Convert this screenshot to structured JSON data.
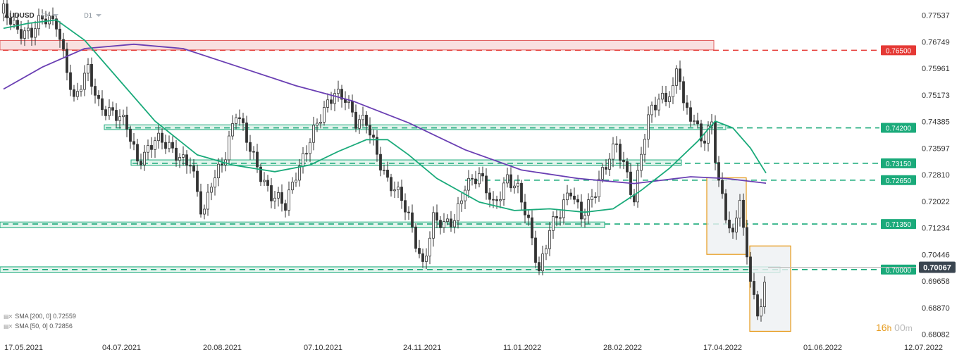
{
  "header": {
    "symbol": "AUDUSD",
    "market": "FX",
    "interval": "D1"
  },
  "indicators": [
    {
      "label": "SMA [200, 0] 0.72559",
      "color": "#6a3fb3"
    },
    {
      "label": "SMA [50, 0] 0.72856",
      "color": "#1aaa7a"
    }
  ],
  "countdown": {
    "hours": "16",
    "h": "h",
    "minutes": "00",
    "m": "m"
  },
  "colors": {
    "green_level": "#1aaa7a",
    "red_level": "#e53935",
    "sma200": "#6a3fb3",
    "sma50": "#1aaa7a",
    "candle_up": "#ffffff",
    "candle_down": "#333333",
    "current_price": "#3a4550",
    "box_outline": "#e69a1b"
  },
  "chart_data": {
    "type": "candlestick",
    "title": "AUDUSD",
    "x_tick_labels": [
      "17.05.2021",
      "04.07.2021",
      "20.08.2021",
      "07.10.2021",
      "24.11.2021",
      "11.01.2022",
      "28.02.2022",
      "17.04.2022",
      "01.06.2022",
      "12.07.2022"
    ],
    "y_tick_labels": [
      "0.77537",
      "0.76749",
      "0.75961",
      "0.75173",
      "0.74385",
      "0.73597",
      "0.72810",
      "0.72022",
      "0.71234",
      "0.70446",
      "0.69658",
      "0.68870",
      "0.68082"
    ],
    "ylim": [
      0.6797,
      0.7799
    ],
    "levels": [
      {
        "label": "0.76500",
        "value": 0.765,
        "color": "red"
      },
      {
        "label": "0.74200",
        "value": 0.742,
        "color": "green"
      },
      {
        "label": "0.73150",
        "value": 0.7315,
        "color": "green"
      },
      {
        "label": "0.72650",
        "value": 0.7265,
        "color": "green"
      },
      {
        "label": "0.71350",
        "value": 0.7135,
        "color": "green"
      },
      {
        "label": "0.70000",
        "value": 0.7,
        "color": "green"
      }
    ],
    "current_price": {
      "label": "0.70067",
      "value": 0.70067
    },
    "series": [
      {
        "name": "SMA [200, 0]",
        "last_value": 0.72559
      },
      {
        "name": "SMA [50, 0]",
        "last_value": 0.72856
      }
    ]
  }
}
